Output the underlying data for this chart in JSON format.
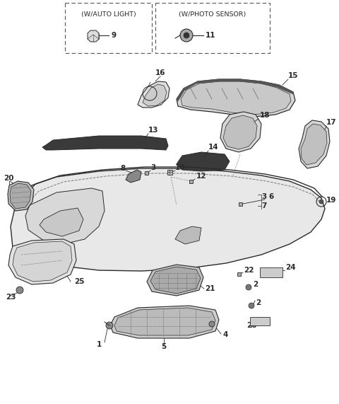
{
  "bg_color": "#ffffff",
  "lc": "#2a2a2a",
  "lc_light": "#555555",
  "figsize": [
    4.8,
    5.71
  ],
  "dpi": 100,
  "box1_label": "(W/AUTO LIGHT)",
  "box2_label": "(W/PHOTO SENSOR)",
  "fs_label": 6.8,
  "fs_num": 7.5,
  "fs_hdr": 6.8
}
